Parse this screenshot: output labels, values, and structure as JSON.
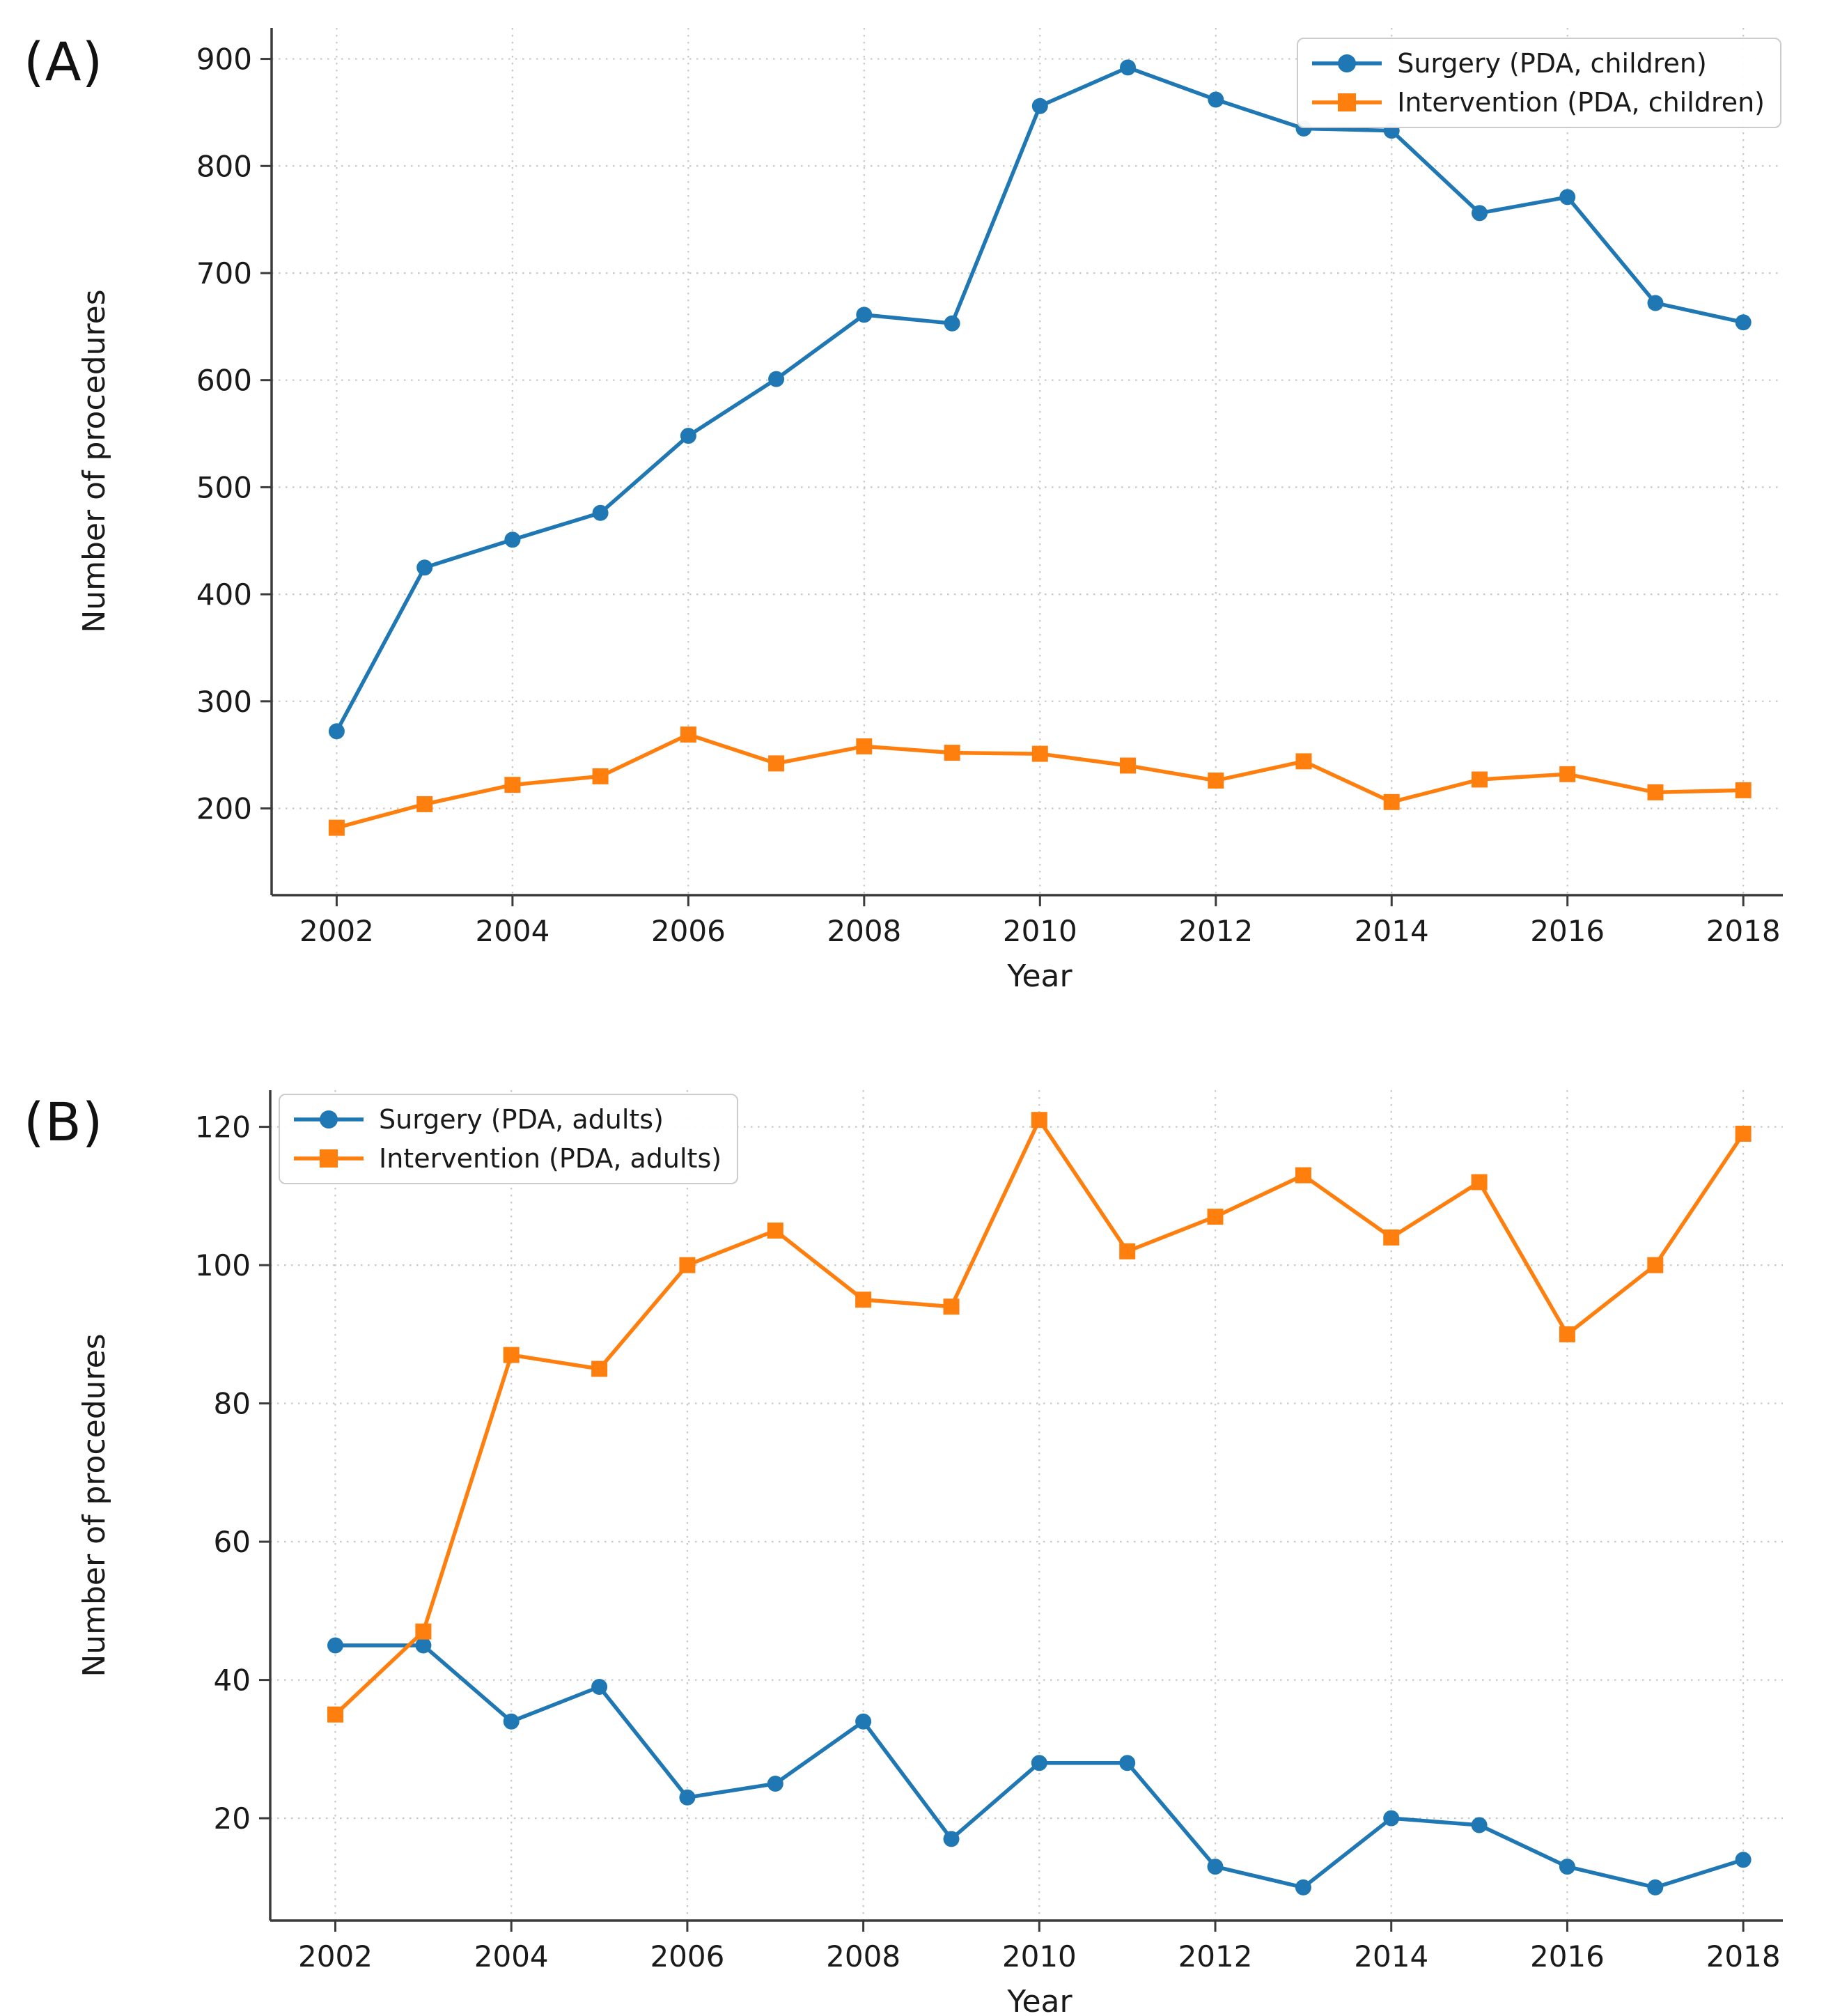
{
  "figure": {
    "background_color": "#ffffff",
    "text_color": "#1a1a1a",
    "grid_color": "#c8c8c8",
    "spine_color": "#3b3b3b",
    "surgery_color": "#1f77b4",
    "intervention_color": "#ff7f0e"
  },
  "panels": [
    {
      "label": "(A)"
    },
    {
      "label": "(B)"
    }
  ],
  "chart_data": [
    {
      "type": "line",
      "panel": "A",
      "xlabel": "Year",
      "ylabel": "Number of procedures",
      "x": [
        2002,
        2003,
        2004,
        2005,
        2006,
        2007,
        2008,
        2009,
        2010,
        2011,
        2012,
        2013,
        2014,
        2015,
        2016,
        2017,
        2018
      ],
      "xticks": [
        2002,
        2004,
        2006,
        2008,
        2010,
        2012,
        2014,
        2016,
        2018
      ],
      "yticks": [
        200,
        300,
        400,
        500,
        600,
        700,
        800,
        900
      ],
      "xlim": [
        2001.26,
        2018.45
      ],
      "ylim": [
        119,
        929
      ],
      "grid": true,
      "legend_position": "upper right",
      "series": [
        {
          "name": "Surgery (PDA, children)",
          "color": "#1f77b4",
          "marker": "circle",
          "values": [
            272,
            425,
            451,
            476,
            548,
            601,
            661,
            653,
            856,
            892,
            862,
            835,
            833,
            756,
            771,
            672,
            654
          ]
        },
        {
          "name": "Intervention (PDA, children)",
          "color": "#ff7f0e",
          "marker": "square",
          "values": [
            182,
            204,
            222,
            230,
            269,
            242,
            258,
            252,
            251,
            240,
            226,
            244,
            206,
            227,
            232,
            215,
            217
          ]
        }
      ]
    },
    {
      "type": "line",
      "panel": "B",
      "xlabel": "Year",
      "ylabel": "Number of procedures",
      "x": [
        2002,
        2003,
        2004,
        2005,
        2006,
        2007,
        2008,
        2009,
        2010,
        2011,
        2012,
        2013,
        2014,
        2015,
        2016,
        2017,
        2018
      ],
      "xticks": [
        2002,
        2004,
        2006,
        2008,
        2010,
        2012,
        2014,
        2016,
        2018
      ],
      "yticks": [
        20,
        40,
        60,
        80,
        100,
        120
      ],
      "xlim": [
        2001.26,
        2018.45
      ],
      "ylim": [
        5.2,
        125.3
      ],
      "grid": true,
      "legend_position": "upper left",
      "series": [
        {
          "name": "Surgery (PDA, adults)",
          "color": "#1f77b4",
          "marker": "circle",
          "values": [
            45,
            45,
            34,
            39,
            23,
            25,
            34,
            17,
            28,
            28,
            13,
            10,
            20,
            19,
            13,
            10,
            14
          ]
        },
        {
          "name": "Intervention (PDA, adults)",
          "color": "#ff7f0e",
          "marker": "square",
          "values": [
            35,
            47,
            87,
            85,
            100,
            105,
            95,
            94,
            121,
            102,
            107,
            113,
            104,
            112,
            90,
            100,
            119
          ]
        }
      ]
    }
  ]
}
